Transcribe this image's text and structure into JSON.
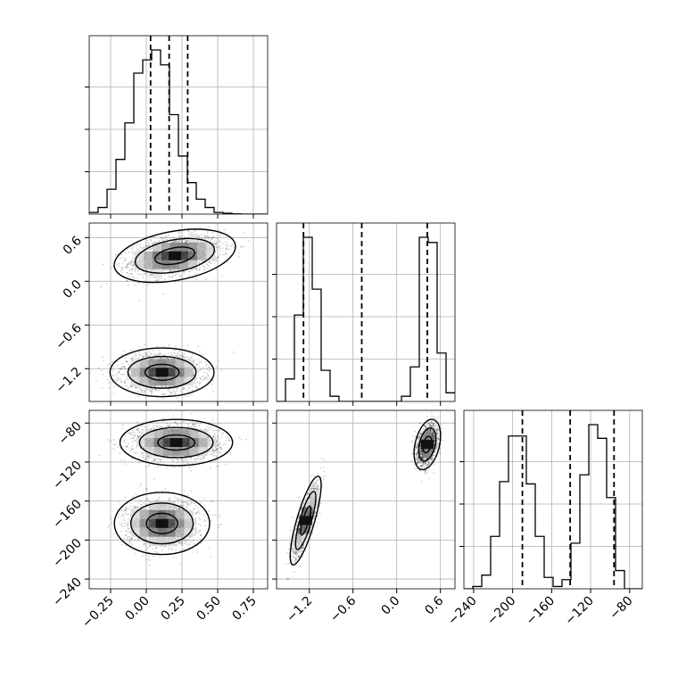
{
  "chart_data": {
    "type": "corner",
    "title": "",
    "grid": true,
    "colors": {
      "ink": "#000000",
      "grid": "#b0b0b0",
      "background": "#ffffff"
    },
    "parameters": [
      {
        "name": "",
        "range": [
          -0.4,
          0.85
        ],
        "ticks": [
          -0.25,
          0.0,
          0.25,
          0.5,
          0.75
        ],
        "tick_labels": [
          "−0.25",
          "0.00",
          "0.25",
          "0.50",
          "0.75"
        ]
      },
      {
        "name": "",
        "range": [
          -1.65,
          0.8
        ],
        "ticks": [
          -1.2,
          -0.6,
          0.0,
          0.6
        ],
        "tick_labels": [
          "−1.2",
          "−0.6",
          "0.0",
          "0.6"
        ]
      },
      {
        "name": "",
        "range": [
          -250,
          -67
        ],
        "ticks": [
          -240,
          -200,
          -160,
          -120,
          -80
        ],
        "tick_labels": [
          "−240",
          "−200",
          "−160",
          "−120",
          "−80"
        ]
      }
    ],
    "histograms": [
      {
        "param": 0,
        "edges_start": -0.4,
        "bin_width": 0.0625,
        "counts": [
          0.01,
          0.04,
          0.15,
          0.33,
          0.55,
          0.85,
          0.93,
          0.99,
          0.9,
          0.6,
          0.35,
          0.19,
          0.09,
          0.04,
          0.01,
          0.005,
          0.001,
          0.0,
          0.0,
          0.0
        ],
        "quantiles": [
          0.03,
          0.16,
          0.29
        ]
      },
      {
        "param": 1,
        "edges_start": -1.65,
        "bin_width": 0.1225,
        "counts": [
          0.0,
          0.13,
          0.5,
          0.95,
          0.65,
          0.18,
          0.03,
          0.0,
          0.0,
          0.0,
          0.0,
          0.0,
          0.0,
          0.0,
          0.03,
          0.2,
          0.95,
          0.92,
          0.28,
          0.05
        ],
        "quantiles": [
          -1.28,
          -0.48,
          0.42
        ]
      },
      {
        "param": 2,
        "edges_start": -250,
        "bin_width": 9.15,
        "counts": [
          0.0,
          0.01,
          0.06,
          0.23,
          0.47,
          0.67,
          0.67,
          0.46,
          0.23,
          0.05,
          0.01,
          0.04,
          0.2,
          0.5,
          0.72,
          0.66,
          0.4,
          0.08,
          0.0,
          0.0
        ],
        "quantiles": [
          -190,
          -141,
          -96
        ]
      }
    ],
    "density_2d": [
      {
        "x": 0,
        "y": 1,
        "modes": [
          {
            "center": [
              0.2,
              0.35
            ],
            "sd": [
              0.14,
              0.12
            ],
            "weight": 0.5,
            "corr": 0.35
          },
          {
            "center": [
              0.11,
              -1.25
            ],
            "sd": [
              0.12,
              0.11
            ],
            "weight": 0.5,
            "corr": 0.0
          }
        ]
      },
      {
        "x": 0,
        "y": 2,
        "modes": [
          {
            "center": [
              0.21,
              -100
            ],
            "sd": [
              0.13,
              7.8
            ],
            "weight": 0.5,
            "corr": 0.0
          },
          {
            "center": [
              0.11,
              -183
            ],
            "sd": [
              0.11,
              10.5
            ],
            "weight": 0.5,
            "corr": 0.0
          }
        ]
      },
      {
        "x": 1,
        "y": 2,
        "modes": [
          {
            "center": [
              -1.25,
              -180
            ],
            "sd": [
              0.07,
              15
            ],
            "weight": 0.5,
            "corr": 0.8
          },
          {
            "center": [
              0.42,
              -102
            ],
            "sd": [
              0.06,
              8.5
            ],
            "weight": 0.5,
            "corr": 0.35
          }
        ]
      }
    ]
  }
}
